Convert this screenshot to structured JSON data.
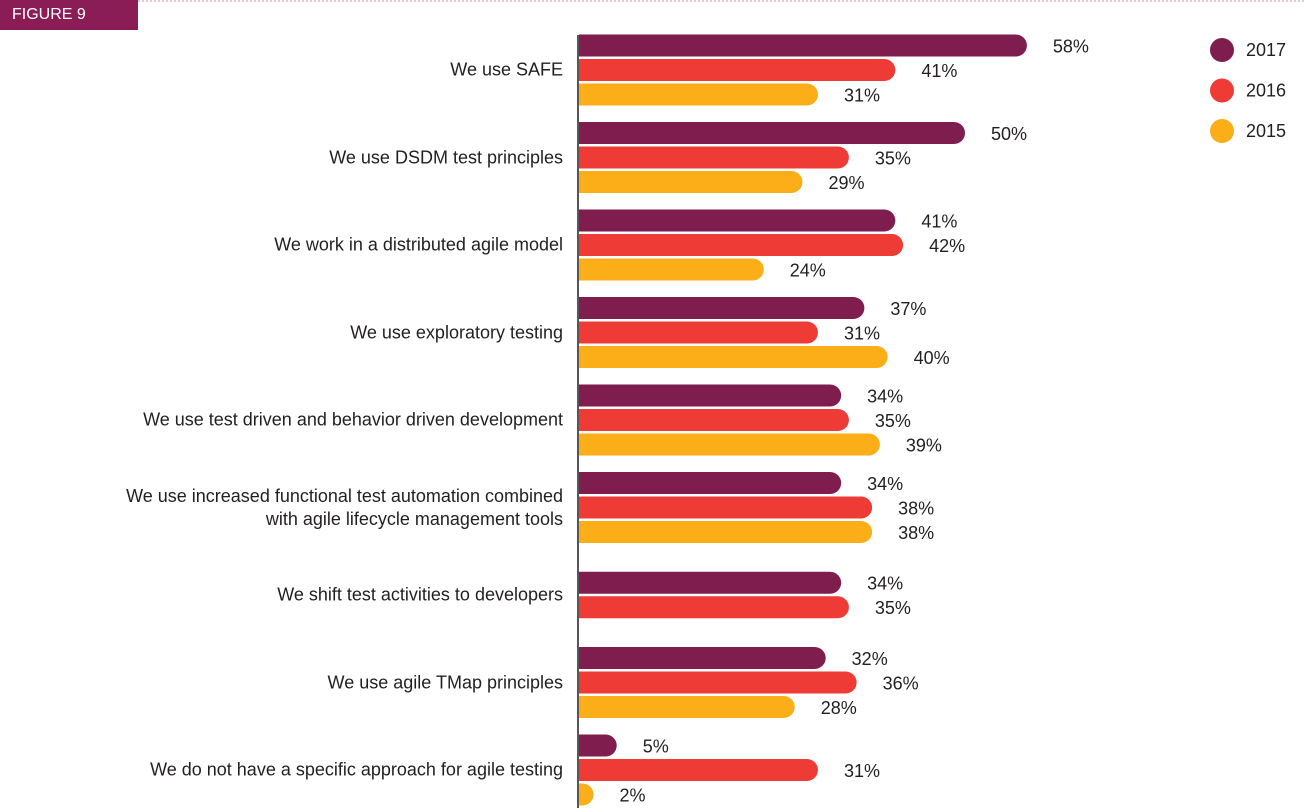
{
  "chart_data": {
    "type": "bar",
    "orientation": "horizontal",
    "figure_label": "FIGURE 9",
    "categories": [
      "We use SAFE",
      "We use DSDM test principles",
      "We work in a distributed agile model",
      "We use exploratory testing",
      "We use test driven and behavior driven development",
      "We use increased functional test automation combined\nwith agile lifecycle management tools",
      "We shift test activities to developers",
      "We use agile TMap principles",
      "We do not have a specific approach for agile testing"
    ],
    "series": [
      {
        "name": "2017",
        "color": "#7f1d4e",
        "values": [
          58,
          50,
          41,
          37,
          34,
          34,
          34,
          32,
          5
        ],
        "value_labels": [
          "58%",
          "50%",
          "41%",
          "37%",
          "34%",
          "34%",
          "34%",
          "32%",
          "5%"
        ]
      },
      {
        "name": "2016",
        "color": "#ef3b36",
        "values": [
          41,
          35,
          42,
          31,
          35,
          38,
          35,
          36,
          31
        ],
        "value_labels": [
          "41%",
          "35%",
          "42%",
          "31%",
          "35%",
          "38%",
          "35%",
          "36%",
          "31%"
        ]
      },
      {
        "name": "2015",
        "color": "#fbae17",
        "values": [
          31,
          29,
          24,
          40,
          39,
          38,
          null,
          28,
          2
        ],
        "value_labels": [
          "31%",
          "29%",
          "24%",
          "40%",
          "39%",
          "38%",
          null,
          "28%",
          "2%"
        ]
      }
    ],
    "xlim": [
      0,
      100
    ],
    "legend": "top-right"
  }
}
